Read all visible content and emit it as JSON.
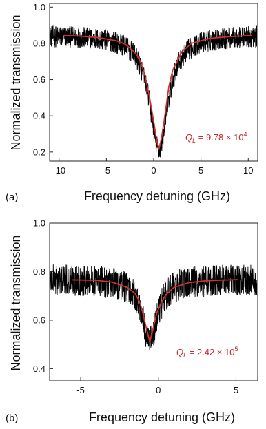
{
  "chart_data": [
    {
      "type": "line",
      "panel_label": "(a)",
      "xlabel": "Frequency detuning (GHz)",
      "ylabel": "Normalized transmission",
      "xlim": [
        -11,
        11
      ],
      "ylim": [
        0.15,
        1.02
      ],
      "xticks": [
        -10,
        -5,
        0,
        5,
        10
      ],
      "yticks": [
        0.2,
        0.4,
        0.6,
        0.8,
        1.0
      ],
      "xtick_labels": [
        "-10",
        "-5",
        "0",
        "5",
        "10"
      ],
      "ytick_labels": [
        "0.2",
        "0.4",
        "0.6",
        "0.8",
        "1.0"
      ],
      "annotation": {
        "q_symbol": "Q",
        "q_sub": "L",
        "text": " = 9.78 × 10",
        "exponent": "4"
      },
      "data": {
        "x_range": [
          -11,
          11
        ],
        "baseline": 0.845,
        "center": 0.55,
        "dip_depth": 0.63,
        "half_width": 1.2,
        "noise_amplitude": 0.06,
        "fit": {
          "x": [
            -9.5,
            -8,
            -6,
            -4,
            -3,
            -2,
            -1.5,
            -1,
            -0.5,
            0,
            0.3,
            0.55,
            0.8,
            1.1,
            1.6,
            2,
            3,
            4,
            6,
            8,
            10.3
          ],
          "y": [
            0.843,
            0.84,
            0.833,
            0.815,
            0.795,
            0.75,
            0.71,
            0.64,
            0.52,
            0.37,
            0.27,
            0.215,
            0.27,
            0.37,
            0.56,
            0.65,
            0.755,
            0.8,
            0.828,
            0.837,
            0.843
          ]
        }
      }
    },
    {
      "type": "line",
      "panel_label": "(b)",
      "xlabel": "Frequency detuning (GHz)",
      "ylabel": "Normalized transmission",
      "xlim": [
        -7,
        6.4
      ],
      "ylim": [
        0.35,
        1.0
      ],
      "xticks": [
        -5,
        0,
        5
      ],
      "yticks": [
        0.4,
        0.6,
        0.8,
        1.0
      ],
      "xtick_labels": [
        "-5",
        "0",
        "5"
      ],
      "ytick_labels": [
        "0.4",
        "0.6",
        "0.8",
        "1.0"
      ],
      "annotation": {
        "q_symbol": "Q",
        "q_sub": "L",
        "text": " = 2.42 × 10",
        "exponent": "5"
      },
      "data": {
        "x_range": [
          -7,
          6.4
        ],
        "baseline": 0.768,
        "center": -0.55,
        "dip_depth": 0.26,
        "half_width": 0.6,
        "noise_amplitude": 0.065,
        "fit": {
          "x": [
            -5.5,
            -4,
            -3,
            -2,
            -1.5,
            -1.2,
            -1,
            -0.8,
            -0.55,
            -0.3,
            -0.1,
            0.2,
            0.5,
            1,
            2,
            3,
            4,
            5.1
          ],
          "y": [
            0.766,
            0.764,
            0.757,
            0.735,
            0.71,
            0.675,
            0.63,
            0.575,
            0.51,
            0.575,
            0.63,
            0.675,
            0.705,
            0.735,
            0.755,
            0.762,
            0.765,
            0.767
          ]
        }
      }
    }
  ]
}
